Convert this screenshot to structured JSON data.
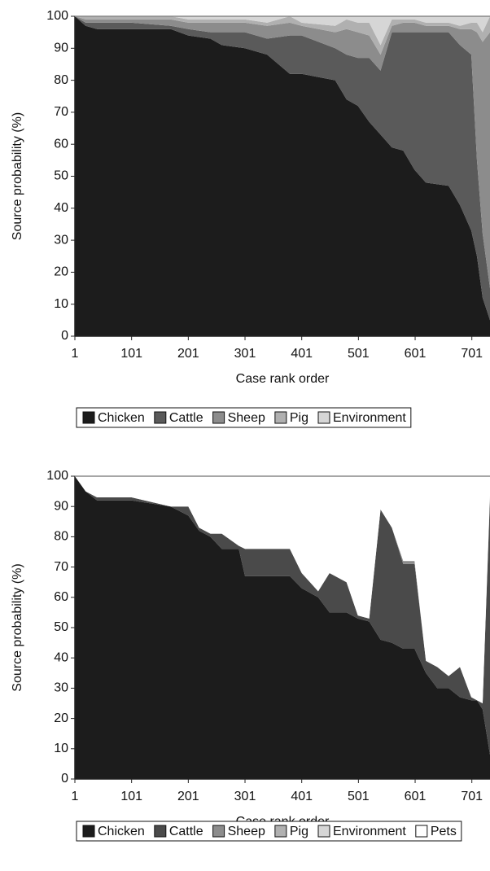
{
  "chart_data": [
    {
      "type": "stacked_area",
      "y_label": "Source probability (%)",
      "x_label": "Case rank order",
      "xlim": [
        1,
        733
      ],
      "xticks": [
        1,
        101,
        201,
        301,
        401,
        501,
        601,
        701
      ],
      "ylim": [
        0,
        100
      ],
      "yticks": [
        0,
        10,
        20,
        30,
        40,
        50,
        60,
        70,
        80,
        90,
        100
      ],
      "x": [
        1,
        20,
        40,
        101,
        170,
        201,
        240,
        260,
        301,
        340,
        380,
        401,
        460,
        480,
        500,
        520,
        540,
        560,
        580,
        600,
        620,
        660,
        680,
        700,
        710,
        720,
        733
      ],
      "series": [
        {
          "name": "Chicken",
          "color": "#1c1c1c",
          "values": [
            100,
            97,
            96,
            96,
            96,
            94,
            93,
            91,
            90,
            88,
            82,
            82,
            80,
            74,
            72,
            67,
            63,
            59,
            58,
            52,
            48,
            47,
            41,
            33,
            25,
            12,
            5
          ]
        },
        {
          "name": "Cattle",
          "color": "#5a5a5a",
          "values": [
            0,
            1,
            2,
            2,
            1,
            2,
            2,
            4,
            5,
            5,
            12,
            12,
            10,
            14,
            15,
            20,
            20,
            36,
            37,
            43,
            47,
            48,
            50,
            55,
            30,
            20,
            10
          ]
        },
        {
          "name": "Sheep",
          "color": "#8c8c8c",
          "values": [
            0,
            1,
            1,
            1,
            2,
            2,
            3,
            3,
            3,
            4,
            4,
            3,
            5,
            8,
            8,
            7,
            5,
            2,
            3,
            3,
            2,
            2,
            5,
            8,
            40,
            60,
            80
          ]
        },
        {
          "name": "Pig",
          "color": "#b0b0b0",
          "values": [
            0,
            1,
            1,
            1,
            1,
            1,
            1,
            1,
            1,
            1,
            2,
            1,
            2,
            3,
            3,
            4,
            3,
            2,
            1,
            1,
            1,
            1,
            1,
            2,
            3,
            3,
            5
          ]
        },
        {
          "name": "Environment",
          "color": "#d6d6d6",
          "values": [
            0,
            0,
            0,
            0,
            0,
            1,
            1,
            1,
            1,
            2,
            0,
            2,
            3,
            1,
            2,
            2,
            9,
            1,
            1,
            1,
            2,
            2,
            3,
            2,
            2,
            5,
            0
          ]
        }
      ]
    },
    {
      "type": "stacked_area",
      "y_label": "Source probability (%)",
      "x_label": "Case rank order",
      "xlim": [
        1,
        733
      ],
      "xticks": [
        1,
        101,
        201,
        301,
        401,
        501,
        601,
        701
      ],
      "ylim": [
        0,
        100
      ],
      "yticks": [
        0,
        10,
        20,
        30,
        40,
        50,
        60,
        70,
        80,
        90,
        100
      ],
      "x": [
        1,
        20,
        40,
        101,
        170,
        201,
        220,
        240,
        260,
        290,
        301,
        340,
        380,
        401,
        430,
        450,
        480,
        500,
        520,
        540,
        560,
        580,
        600,
        620,
        640,
        660,
        680,
        700,
        710,
        720,
        733
      ],
      "series": [
        {
          "name": "Chicken",
          "color": "#1c1c1c",
          "values": [
            100,
            95,
            92,
            92,
            90,
            87,
            82,
            80,
            76,
            76,
            67,
            67,
            67,
            63,
            60,
            55,
            55,
            53,
            52,
            46,
            45,
            43,
            43,
            35,
            30,
            30,
            27,
            26,
            26,
            23,
            8
          ]
        },
        {
          "name": "Cattle",
          "color": "#4a4a4a",
          "values": [
            0,
            0,
            1,
            1,
            0,
            3,
            1,
            1,
            5,
            1,
            9,
            9,
            9,
            5,
            2,
            13,
            10,
            1,
            1,
            43,
            38,
            28,
            28,
            4,
            7,
            4,
            10,
            1,
            0,
            2,
            85
          ]
        },
        {
          "name": "Sheep",
          "color": "#8c8c8c",
          "values": [
            0,
            0,
            0,
            0,
            0,
            0,
            0,
            0,
            0,
            0,
            0,
            0,
            0,
            0,
            0,
            0,
            0,
            0,
            0,
            0,
            0,
            1,
            1,
            0,
            0,
            0,
            0,
            0,
            0,
            0,
            1
          ]
        },
        {
          "name": "Pig",
          "color": "#b0b0b0",
          "values": [
            0,
            0,
            0,
            0,
            0,
            0,
            0,
            0,
            0,
            0,
            0,
            0,
            0,
            0,
            0,
            0,
            0,
            0,
            0,
            0,
            0,
            0,
            0,
            0,
            0,
            0,
            0,
            0,
            0,
            0,
            0
          ]
        },
        {
          "name": "Environment",
          "color": "#d6d6d6",
          "values": [
            0,
            0,
            0,
            0,
            0,
            0,
            0,
            0,
            0,
            0,
            0,
            0,
            0,
            0,
            0,
            0,
            0,
            0,
            0,
            0,
            0,
            0,
            0,
            0,
            0,
            0,
            0,
            0,
            0,
            0,
            0
          ]
        },
        {
          "name": "Pets",
          "color": "#ffffff",
          "values": [
            0,
            5,
            7,
            7,
            10,
            10,
            17,
            19,
            19,
            23,
            24,
            24,
            24,
            32,
            38,
            32,
            35,
            46,
            47,
            11,
            17,
            28,
            28,
            61,
            63,
            66,
            63,
            73,
            74,
            75,
            6
          ]
        }
      ]
    }
  ]
}
